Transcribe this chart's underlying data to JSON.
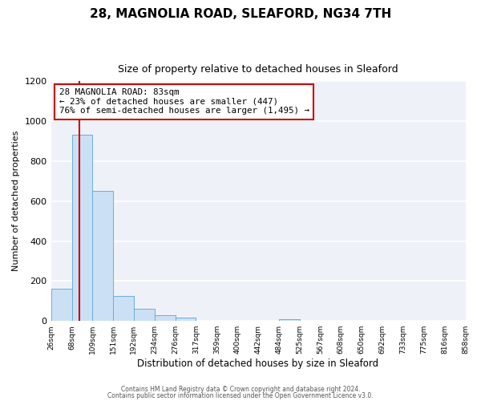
{
  "title1": "28, MAGNOLIA ROAD, SLEAFORD, NG34 7TH",
  "title2": "Size of property relative to detached houses in Sleaford",
  "xlabel": "Distribution of detached houses by size in Sleaford",
  "ylabel": "Number of detached properties",
  "bar_edges": [
    26,
    68,
    109,
    151,
    192,
    234,
    276,
    317,
    359,
    400,
    442,
    484,
    525,
    567,
    608,
    650,
    692,
    733,
    775,
    816,
    858
  ],
  "bar_heights": [
    160,
    930,
    650,
    125,
    60,
    30,
    17,
    0,
    0,
    0,
    0,
    10,
    0,
    0,
    0,
    0,
    0,
    0,
    0,
    0
  ],
  "bar_color": "#cce0f5",
  "bar_edgecolor": "#6aaed6",
  "property_line_x": 83,
  "property_line_color": "#cc0000",
  "annotation_line1": "28 MAGNOLIA ROAD: 83sqm",
  "annotation_line2": "← 23% of detached houses are smaller (447)",
  "annotation_line3": "76% of semi-detached houses are larger (1,495) →",
  "annotation_box_color": "#ffffff",
  "annotation_box_edgecolor": "#cc0000",
  "ylim": [
    0,
    1200
  ],
  "yticks": [
    0,
    200,
    400,
    600,
    800,
    1000,
    1200
  ],
  "footer1": "Contains HM Land Registry data © Crown copyright and database right 2024.",
  "footer2": "Contains public sector information licensed under the Open Government Licence v3.0.",
  "fig_bg_color": "#ffffff",
  "plot_bg_color": "#eef2f8",
  "grid_color": "#ffffff",
  "title1_fontsize": 11,
  "title2_fontsize": 9
}
